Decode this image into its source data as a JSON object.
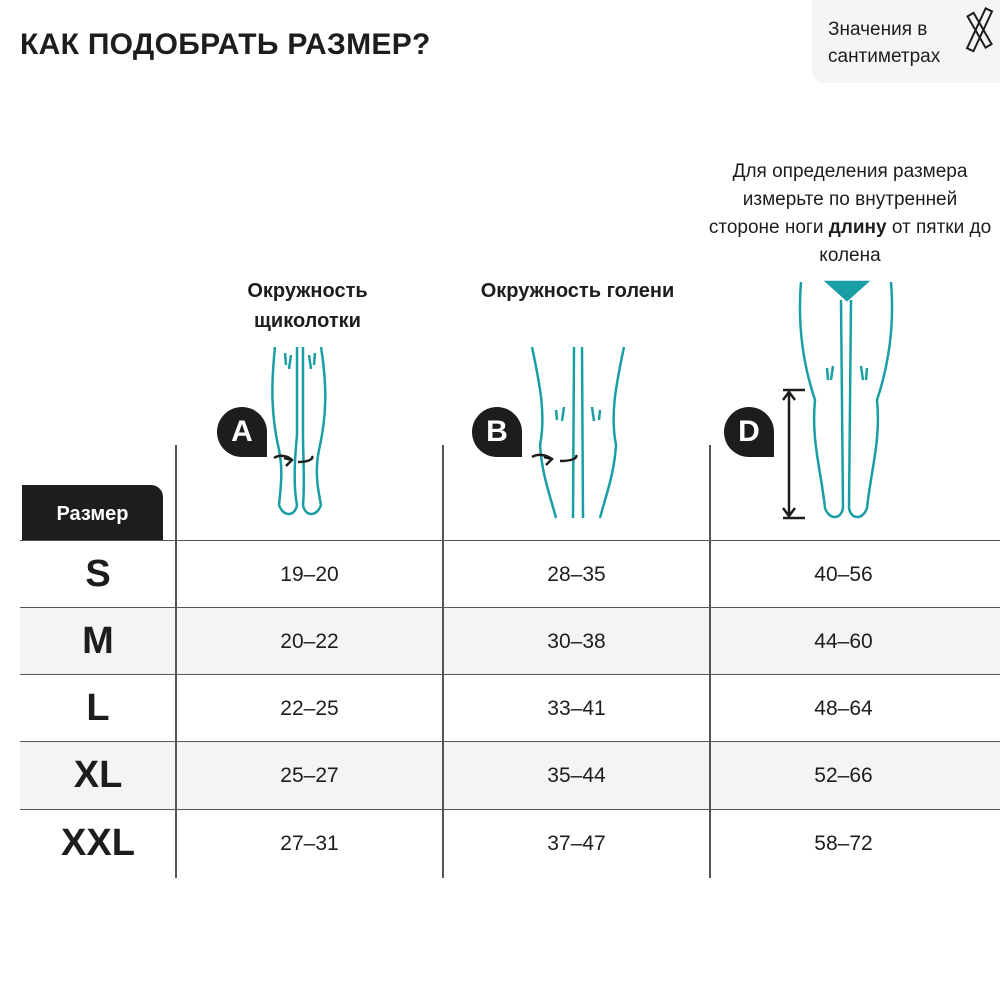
{
  "title": "КАК ПОДОБРАТЬ РАЗМЕР?",
  "units_note": "Значения в сантиметрах",
  "columns": [
    {
      "badge": "A",
      "label": "Окружность щиколотки"
    },
    {
      "badge": "B",
      "label": "Окружность голени"
    },
    {
      "badge": "D",
      "label": ""
    }
  ],
  "length_note": {
    "before": "Для определения размера измерьте по внутренней стороне ноги ",
    "bold": "длину",
    "after": " от пятки до колена"
  },
  "size_header": "Размер",
  "rows": [
    {
      "size": "S",
      "a": "19–20",
      "b": "28–35",
      "d": "40–56"
    },
    {
      "size": "M",
      "a": "20–22",
      "b": "30–38",
      "d": "44–60"
    },
    {
      "size": "L",
      "a": "22–25",
      "b": "33–41",
      "d": "48–64"
    },
    {
      "size": "XL",
      "a": "25–27",
      "b": "35–44",
      "d": "52–66"
    },
    {
      "size": "XXL",
      "a": "27–31",
      "b": "37–47",
      "d": "58–72"
    }
  ],
  "colors": {
    "accent": "#1a9ea6",
    "dark": "#1d1d1b",
    "band": "#f4f4f4"
  }
}
